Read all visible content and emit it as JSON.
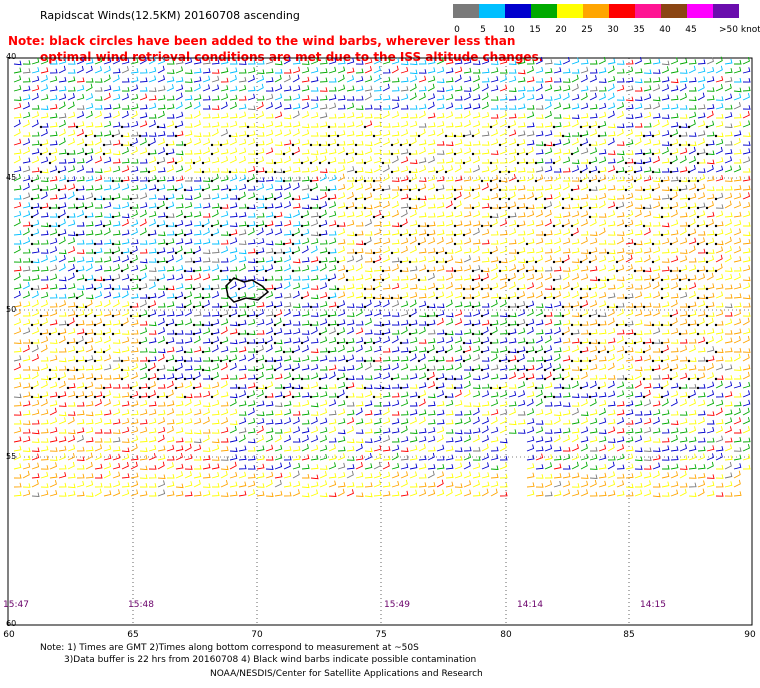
{
  "title": "Rapidscat Winds(12.5KM) 20160708 ascending",
  "note": {
    "line1": "Note: black circles have been added to the wind barbs, wherever less than",
    "line2": "optimal wind retrieval conditions are met due to the ISS altitude changes."
  },
  "colorbar": {
    "labels": [
      "0",
      "5",
      "10",
      "15",
      "20",
      "25",
      "30",
      "35",
      "40",
      "45",
      ">50 knots"
    ],
    "colors": [
      "#7a7a7a",
      "#00bfff",
      "#0000cd",
      "#00aa00",
      "#ffff00",
      "#ffa500",
      "#ff0000",
      "#ff1493",
      "#8b4513",
      "#ff00ff",
      "#6a0dad"
    ]
  },
  "map": {
    "lat_labels": [
      "40",
      "45",
      "50",
      "55",
      "60"
    ],
    "lon_labels": [
      "60",
      "65",
      "70",
      "75",
      "80",
      "85",
      "90"
    ],
    "time_labels": [
      "15:47",
      "15:48",
      "15:49",
      "14:14",
      "14:15"
    ]
  },
  "footer": {
    "line1": "Note: 1) Times are GMT 2)Times along bottom correspond to measurement at ~50S",
    "line2": "3)Data buffer is 22 hrs from 20160708 4) Black wind barbs indicate possible contamination",
    "credit": "NOAA/NESDIS/Center for Satellite Applications and Research"
  }
}
